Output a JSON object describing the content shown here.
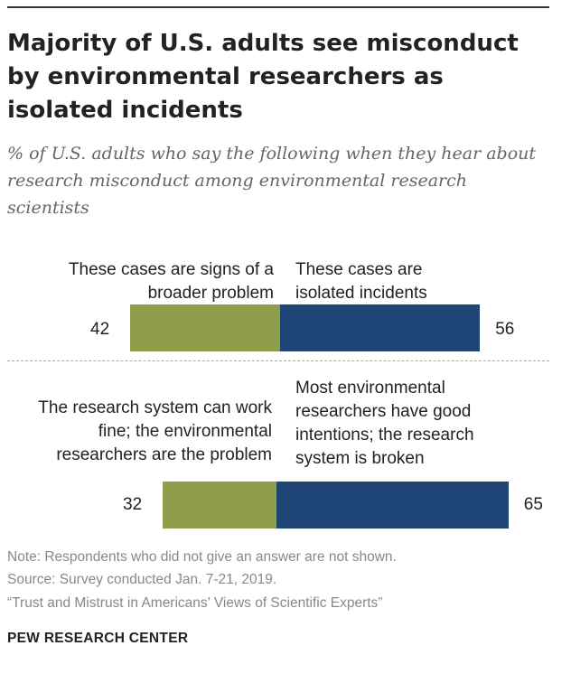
{
  "title": "Majority of U.S. adults see misconduct by environmental researchers as isolated incidents",
  "subtitle": "% of U.S. adults who say the following when they hear about research misconduct among environmental research scientists",
  "colors": {
    "left_series": "#8f9e4a",
    "right_series": "#1f4577"
  },
  "chart_data": {
    "type": "bar",
    "orientation": "horizontal-diverging",
    "items": [
      {
        "left_label": "These cases are signs of a broader problem",
        "left_value": 42,
        "right_label": "These cases are isolated incidents",
        "right_value": 56
      },
      {
        "left_label": "The research system can work fine; the environmental researchers are the problem",
        "left_value": 32,
        "right_label": "Most environmental researchers have good intentions; the research system is broken",
        "right_value": 65
      }
    ]
  },
  "notes": {
    "note": "Note: Respondents who did not give an answer are not shown.",
    "source": "Source: Survey conducted Jan. 7-21, 2019.",
    "report": "“Trust and Mistrust in Americans’ Views of Scientific Experts”"
  },
  "brand": "PEW RESEARCH CENTER"
}
